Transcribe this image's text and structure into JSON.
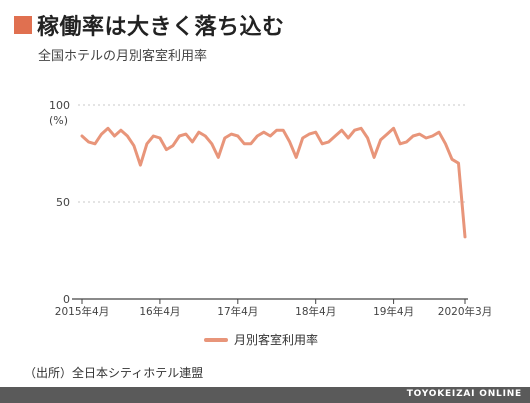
{
  "title": "稼働率は大きく落ち込む",
  "subtitle": "全国ホテルの月別客室利用率",
  "source": "（出所）全日本シティホテル連盟",
  "footer": "TOYOKEIZAI ONLINE",
  "colors": {
    "accent": "#e07050",
    "line": "#e8957a",
    "footer_bg": "#5a5a5a"
  },
  "chart_data": {
    "type": "line",
    "title": "稼働率は大きく落ち込む",
    "subtitle": "全国ホテルの月別客室利用率",
    "ylabel": "(%)",
    "ylim": [
      0,
      100
    ],
    "yticks": [
      0,
      50,
      100
    ],
    "grid": true,
    "legend_position": "bottom",
    "xticks": [
      {
        "index": 0,
        "label": "2015年4月"
      },
      {
        "index": 12,
        "label": "16年4月"
      },
      {
        "index": 24,
        "label": "17年4月"
      },
      {
        "index": 36,
        "label": "18年4月"
      },
      {
        "index": 48,
        "label": "19年4月"
      },
      {
        "index": 59,
        "label": "2020年3月"
      }
    ],
    "series": [
      {
        "name": "月別客室利用率",
        "values": [
          84,
          81,
          80,
          85,
          88,
          84,
          87,
          84,
          79,
          69,
          80,
          84,
          83,
          77,
          79,
          84,
          85,
          81,
          86,
          84,
          80,
          73,
          83,
          85,
          84,
          80,
          80,
          84,
          86,
          84,
          87,
          87,
          81,
          73,
          83,
          85,
          86,
          80,
          81,
          84,
          87,
          83,
          87,
          88,
          83,
          73,
          82,
          85,
          88,
          80,
          81,
          84,
          85,
          83,
          84,
          86,
          80,
          72,
          70,
          32
        ]
      }
    ]
  }
}
